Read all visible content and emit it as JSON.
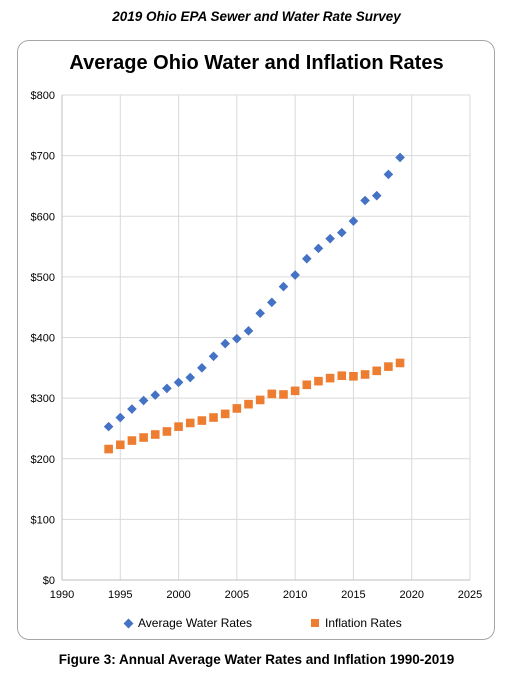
{
  "header": {
    "text": "2019 Ohio EPA Sewer and Water Rate Survey"
  },
  "caption": {
    "text": "Figure 3: Annual Average Water Rates and Inflation 1990-2019"
  },
  "colors": {
    "water": "#4472c4",
    "inflation": "#ed7d31",
    "grid": "#d9d9d9",
    "axis": "#bfbfbf"
  },
  "chart_data": {
    "type": "scatter",
    "title": "Average Ohio Water and Inflation Rates",
    "xlim": [
      1990,
      2025
    ],
    "ylim": [
      0,
      800
    ],
    "xticks": [
      1990,
      1995,
      2000,
      2005,
      2010,
      2015,
      2020,
      2025
    ],
    "yticks": [
      0,
      100,
      200,
      300,
      400,
      500,
      600,
      700,
      800
    ],
    "ytick_labels": [
      "$0",
      "$100",
      "$200",
      "$300",
      "$400",
      "$500",
      "$600",
      "$700",
      "$800"
    ],
    "grid": true,
    "legend": "bottom",
    "x": [
      1994,
      1995,
      1996,
      1997,
      1998,
      1999,
      2000,
      2001,
      2002,
      2003,
      2004,
      2005,
      2006,
      2007,
      2008,
      2009,
      2010,
      2011,
      2012,
      2013,
      2014,
      2015,
      2016,
      2017,
      2018,
      2019
    ],
    "series": [
      {
        "name": "Average Water Rates",
        "marker": "diamond",
        "values": [
          253,
          268,
          282,
          296,
          305,
          316,
          326,
          334,
          350,
          369,
          390,
          398,
          411,
          440,
          458,
          484,
          503,
          530,
          547,
          563,
          573,
          592,
          626,
          634,
          669,
          697
        ]
      },
      {
        "name": "Inflation Rates",
        "marker": "square",
        "values": [
          216,
          223,
          230,
          235,
          240,
          245,
          253,
          259,
          263,
          268,
          274,
          283,
          290,
          297,
          307,
          306,
          312,
          322,
          328,
          333,
          337,
          336,
          339,
          345,
          352,
          358
        ]
      }
    ]
  }
}
